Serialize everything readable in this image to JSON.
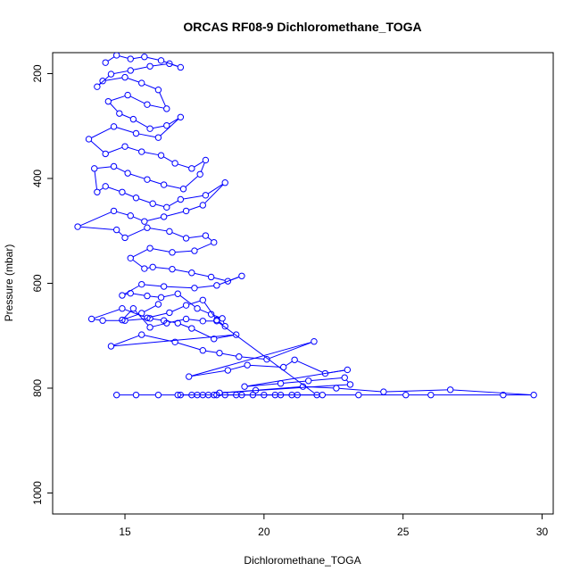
{
  "chart_data": {
    "type": "scatter",
    "title": "ORCAS RF08-9 Dichloromethane_TOGA",
    "xlabel": "Dichloromethane_TOGA",
    "ylabel": "Pressure (mbar)",
    "xlim": [
      12.4,
      30.4
    ],
    "ylim": [
      1040,
      160
    ],
    "y_reversed": true,
    "x_ticks": [
      15,
      20,
      25,
      30
    ],
    "y_ticks": [
      200,
      400,
      600,
      800,
      1000
    ],
    "grid": false,
    "legend": "none",
    "marker": "open-circle",
    "connected": true,
    "color": "#0000ff",
    "series": [
      {
        "points": [
          [
            14.7,
            813
          ],
          [
            15.4,
            813
          ],
          [
            16.2,
            813
          ],
          [
            16.9,
            813
          ],
          [
            17.6,
            813
          ],
          [
            18.3,
            813
          ],
          [
            19.2,
            813
          ],
          [
            20.4,
            813
          ],
          [
            21.2,
            813
          ],
          [
            22.1,
            813
          ],
          [
            23.4,
            813
          ],
          [
            25.1,
            813
          ],
          [
            26.0,
            813
          ],
          [
            28.6,
            813
          ],
          [
            29.7,
            813
          ],
          [
            26.7,
            803
          ],
          [
            24.3,
            807
          ],
          [
            22.6,
            800
          ],
          [
            21.4,
            797
          ],
          [
            19.7,
            804
          ],
          [
            18.4,
            809
          ],
          [
            23.1,
            793
          ],
          [
            22.9,
            780
          ],
          [
            21.6,
            786
          ],
          [
            20.6,
            791
          ],
          [
            19.3,
            797
          ],
          [
            23.0,
            765
          ],
          [
            22.2,
            772
          ],
          [
            21.1,
            746
          ],
          [
            20.7,
            760
          ],
          [
            19.4,
            756
          ],
          [
            18.7,
            766
          ],
          [
            17.3,
            778
          ],
          [
            21.8,
            711
          ],
          [
            20.1,
            745
          ],
          [
            19.1,
            740
          ],
          [
            18.4,
            733
          ],
          [
            17.8,
            728
          ],
          [
            16.8,
            712
          ],
          [
            15.6,
            698
          ],
          [
            14.5,
            720
          ],
          [
            19.0,
            698
          ],
          [
            18.2,
            706
          ],
          [
            17.4,
            686
          ],
          [
            16.9,
            676
          ],
          [
            16.4,
            671
          ],
          [
            15.9,
            667
          ],
          [
            15.0,
            671
          ],
          [
            14.2,
            671
          ],
          [
            13.8,
            668
          ],
          [
            14.9,
            648
          ],
          [
            15.8,
            666
          ],
          [
            16.6,
            656
          ],
          [
            17.2,
            642
          ],
          [
            17.8,
            632
          ],
          [
            18.3,
            670
          ],
          [
            18.6,
            682
          ],
          [
            18.5,
            667
          ],
          [
            18.1,
            659
          ],
          [
            17.6,
            648
          ],
          [
            16.9,
            620
          ],
          [
            16.3,
            627
          ],
          [
            15.8,
            624
          ],
          [
            15.2,
            619
          ],
          [
            14.9,
            623
          ],
          [
            15.6,
            602
          ],
          [
            16.4,
            606
          ],
          [
            17.5,
            609
          ],
          [
            18.3,
            604
          ],
          [
            19.2,
            586
          ],
          [
            18.7,
            596
          ],
          [
            18.1,
            588
          ],
          [
            17.4,
            580
          ],
          [
            16.7,
            573
          ],
          [
            16.0,
            569
          ],
          [
            15.7,
            572
          ],
          [
            15.2,
            552
          ],
          [
            15.9,
            533
          ],
          [
            16.7,
            541
          ],
          [
            17.5,
            538
          ],
          [
            18.2,
            522
          ],
          [
            17.9,
            509
          ],
          [
            17.2,
            514
          ],
          [
            16.6,
            501
          ],
          [
            15.8,
            494
          ],
          [
            15.0,
            513
          ],
          [
            14.7,
            498
          ],
          [
            13.3,
            492
          ],
          [
            14.6,
            462
          ],
          [
            15.2,
            471
          ],
          [
            15.7,
            482
          ],
          [
            16.4,
            473
          ],
          [
            17.2,
            462
          ],
          [
            17.8,
            451
          ],
          [
            18.6,
            408
          ],
          [
            17.9,
            432
          ],
          [
            17.0,
            440
          ],
          [
            16.5,
            455
          ],
          [
            16.0,
            448
          ],
          [
            15.4,
            437
          ],
          [
            14.9,
            426
          ],
          [
            14.3,
            415
          ],
          [
            14.0,
            426
          ],
          [
            13.9,
            381
          ],
          [
            14.6,
            377
          ],
          [
            15.1,
            390
          ],
          [
            15.8,
            402
          ],
          [
            16.4,
            412
          ],
          [
            17.1,
            420
          ],
          [
            17.7,
            392
          ],
          [
            17.9,
            365
          ],
          [
            17.4,
            381
          ],
          [
            16.8,
            371
          ],
          [
            16.3,
            356
          ],
          [
            15.6,
            349
          ],
          [
            15.0,
            339
          ],
          [
            14.3,
            353
          ],
          [
            13.7,
            325
          ],
          [
            14.6,
            301
          ],
          [
            15.4,
            314
          ],
          [
            16.2,
            322
          ],
          [
            17.0,
            283
          ],
          [
            16.5,
            299
          ],
          [
            15.9,
            305
          ],
          [
            15.3,
            287
          ],
          [
            14.8,
            276
          ],
          [
            14.4,
            253
          ],
          [
            15.1,
            241
          ],
          [
            15.8,
            259
          ],
          [
            16.5,
            267
          ],
          [
            16.2,
            231
          ],
          [
            15.6,
            218
          ],
          [
            15.0,
            207
          ],
          [
            14.2,
            214
          ],
          [
            14.0,
            225
          ],
          [
            14.5,
            201
          ],
          [
            15.2,
            194
          ],
          [
            15.9,
            186
          ],
          [
            16.6,
            181
          ],
          [
            17.0,
            188
          ],
          [
            16.3,
            175
          ],
          [
            15.7,
            168
          ],
          [
            15.2,
            172
          ],
          [
            14.7,
            165
          ],
          [
            14.3,
            179
          ]
        ]
      },
      {
        "points": [
          [
            17.0,
            813
          ],
          [
            17.4,
            813
          ],
          [
            17.8,
            813
          ],
          [
            18.0,
            813
          ],
          [
            18.2,
            813
          ],
          [
            18.6,
            813
          ],
          [
            19.0,
            813
          ],
          [
            19.6,
            813
          ],
          [
            20.0,
            813
          ],
          [
            20.6,
            813
          ],
          [
            21.0,
            813
          ],
          [
            21.9,
            813
          ],
          [
            18.3,
            672
          ],
          [
            17.8,
            672
          ],
          [
            17.2,
            668
          ],
          [
            16.5,
            676
          ],
          [
            15.9,
            684
          ],
          [
            15.3,
            648
          ],
          [
            14.9,
            670
          ],
          [
            15.6,
            657
          ],
          [
            16.2,
            640
          ]
        ]
      }
    ]
  }
}
